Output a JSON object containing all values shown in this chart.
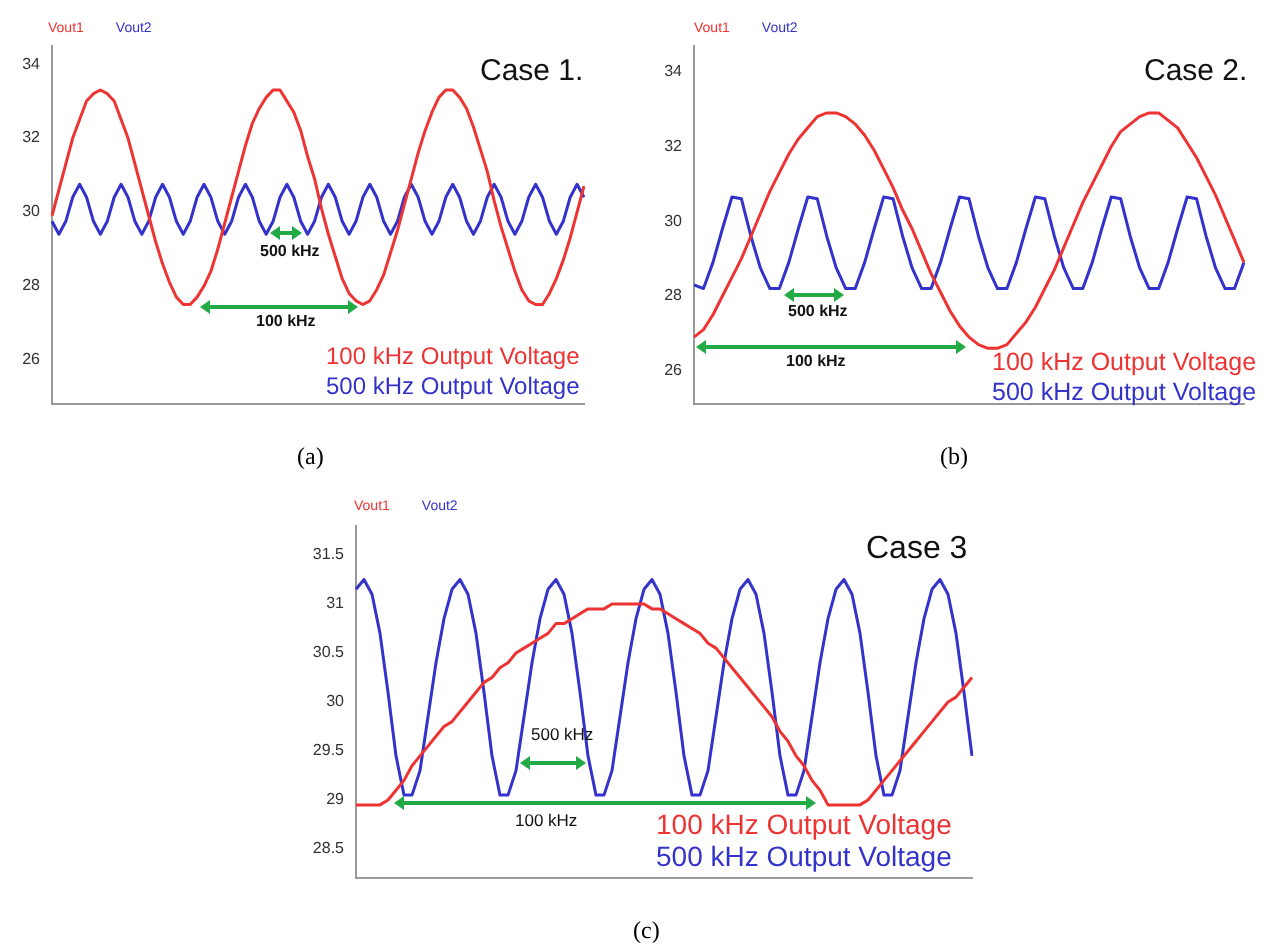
{
  "chart_data": [
    {
      "type": "line",
      "title": "(a)",
      "legend": "top left",
      "tick_labels": "y",
      "ylim": [
        24.8,
        34.5
      ],
      "yticks": [
        26,
        28,
        30,
        32,
        34
      ],
      "annotations": [
        "Case 1.",
        "500 kHz",
        "100 kHz",
        "100 kHz Output Voltage",
        "500 kHz Output Voltage"
      ],
      "categories": [
        null,
        null,
        null,
        null,
        null,
        null,
        null,
        null,
        null,
        null,
        null,
        null,
        null,
        null,
        null,
        null,
        null,
        null,
        null,
        null,
        null,
        null,
        null,
        null,
        null,
        null,
        null,
        null,
        null,
        null,
        null,
        null,
        null,
        null,
        null,
        null,
        null,
        null,
        null,
        null,
        null,
        null,
        null,
        null,
        null,
        null,
        null,
        null,
        null,
        null,
        null,
        null,
        null,
        null,
        null,
        null,
        null,
        null,
        null,
        null,
        null,
        null,
        null,
        null,
        null,
        null,
        null,
        null,
        null,
        null,
        null,
        null,
        null,
        null,
        null,
        null,
        null,
        null
      ],
      "series": [
        {
          "name": "Vout1",
          "color": "#ee3333",
          "values": [
            29.9,
            30.6,
            31.3,
            32.0,
            32.5,
            33.0,
            33.2,
            33.3,
            33.2,
            33.0,
            32.5,
            32.0,
            31.3,
            30.6,
            29.9,
            29.2,
            28.6,
            28.1,
            27.7,
            27.5,
            27.5,
            27.7,
            28.0,
            28.4,
            29.0,
            29.7,
            30.4,
            31.1,
            31.8,
            32.4,
            32.8,
            33.1,
            33.3,
            33.3,
            33.0,
            32.7,
            32.2,
            31.5,
            30.9,
            30.1,
            29.4,
            28.8,
            28.2,
            27.8,
            27.6,
            27.5,
            27.6,
            27.9,
            28.3,
            28.9,
            29.5,
            30.2,
            30.9,
            31.6,
            32.2,
            32.7,
            33.1,
            33.3,
            33.3,
            33.1,
            32.8,
            32.3,
            31.7,
            31.1,
            30.3,
            29.6,
            29.0,
            28.4,
            27.9,
            27.6,
            27.5,
            27.5,
            27.8,
            28.2,
            28.7,
            29.3,
            30.0,
            30.7
          ]
        },
        {
          "name": "Vout2",
          "color": "#3333cc",
          "values": [
            29.75,
            29.4,
            29.75,
            30.4,
            30.75,
            30.4,
            29.75,
            29.4,
            29.75,
            30.4,
            30.75,
            30.4,
            29.75,
            29.4,
            29.75,
            30.4,
            30.75,
            30.4,
            29.75,
            29.4,
            29.75,
            30.4,
            30.75,
            30.4,
            29.75,
            29.4,
            29.75,
            30.4,
            30.75,
            30.4,
            29.75,
            29.4,
            29.75,
            30.4,
            30.75,
            30.4,
            29.75,
            29.4,
            29.75,
            30.4,
            30.75,
            30.4,
            29.75,
            29.4,
            29.75,
            30.4,
            30.75,
            30.4,
            29.75,
            29.4,
            29.75,
            30.4,
            30.75,
            30.4,
            29.75,
            29.4,
            29.75,
            30.4,
            30.75,
            30.4,
            29.75,
            29.4,
            29.75,
            30.4,
            30.75,
            30.4,
            29.75,
            29.4,
            29.75,
            30.4,
            30.75,
            30.4,
            29.75,
            29.4,
            29.75,
            30.4,
            30.75,
            30.4
          ]
        }
      ]
    },
    {
      "type": "line",
      "title": "(b)",
      "legend": "top left",
      "tick_labels": "y",
      "ylim": [
        25.1,
        34.7
      ],
      "yticks": [
        26,
        28,
        30,
        32,
        34
      ],
      "annotations": [
        "Case 2.",
        "500 kHz",
        "100 kHz",
        "100 kHz Output Voltage",
        "500 kHz Output Voltage"
      ],
      "categories": [
        null,
        null,
        null,
        null,
        null,
        null,
        null,
        null,
        null,
        null,
        null,
        null,
        null,
        null,
        null,
        null,
        null,
        null,
        null,
        null,
        null,
        null,
        null,
        null,
        null,
        null,
        null,
        null,
        null,
        null,
        null,
        null,
        null,
        null,
        null,
        null,
        null,
        null,
        null,
        null,
        null,
        null,
        null,
        null,
        null,
        null,
        null,
        null,
        null,
        null,
        null,
        null,
        null,
        null,
        null,
        null,
        null,
        null,
        null
      ],
      "series": [
        {
          "name": "Vout1",
          "color": "#ee3333",
          "values": [
            26.9,
            27.1,
            27.5,
            28.0,
            28.5,
            29.0,
            29.6,
            30.2,
            30.8,
            31.3,
            31.8,
            32.2,
            32.5,
            32.8,
            32.9,
            32.9,
            32.8,
            32.6,
            32.3,
            31.9,
            31.4,
            30.9,
            30.3,
            29.8,
            29.2,
            28.6,
            28.1,
            27.6,
            27.2,
            26.9,
            26.7,
            26.6,
            26.6,
            26.7,
            27.0,
            27.3,
            27.7,
            28.2,
            28.7,
            29.3,
            29.9,
            30.5,
            31.0,
            31.5,
            32.0,
            32.4,
            32.6,
            32.8,
            32.9,
            32.9,
            32.7,
            32.5,
            32.1,
            31.7,
            31.2,
            30.7,
            30.1,
            29.5,
            28.9
          ]
        },
        {
          "name": "Vout2",
          "color": "#3333cc",
          "values": [
            28.3,
            28.2,
            28.9,
            29.8,
            30.65,
            30.6,
            29.6,
            28.75,
            28.2,
            28.2,
            28.9,
            29.8,
            30.65,
            30.6,
            29.6,
            28.75,
            28.2,
            28.2,
            28.9,
            29.8,
            30.65,
            30.6,
            29.6,
            28.75,
            28.2,
            28.2,
            28.9,
            29.8,
            30.65,
            30.6,
            29.6,
            28.75,
            28.2,
            28.2,
            28.9,
            29.8,
            30.65,
            30.6,
            29.6,
            28.75,
            28.2,
            28.2,
            28.9,
            29.8,
            30.65,
            30.6,
            29.6,
            28.75,
            28.2,
            28.2,
            28.9,
            29.8,
            30.65,
            30.6,
            29.6,
            28.75,
            28.2,
            28.2,
            28.9
          ]
        }
      ]
    },
    {
      "type": "line",
      "title": "(c)",
      "legend": "top left",
      "tick_labels": "y",
      "ylim": [
        28.2,
        31.8
      ],
      "yticks": [
        28.5,
        29,
        29.5,
        30,
        30.5,
        31,
        31.5
      ],
      "annotations": [
        "Case 3",
        "500 kHz",
        "100 kHz",
        "100 kHz Output Voltage",
        "500 kHz Output Voltage"
      ],
      "categories": [
        null,
        null,
        null,
        null,
        null,
        null,
        null,
        null,
        null,
        null,
        null,
        null,
        null,
        null,
        null,
        null,
        null,
        null,
        null,
        null,
        null,
        null,
        null,
        null,
        null,
        null,
        null,
        null,
        null,
        null,
        null,
        null,
        null,
        null,
        null,
        null,
        null,
        null,
        null,
        null,
        null,
        null,
        null,
        null,
        null,
        null,
        null,
        null,
        null,
        null,
        null,
        null,
        null,
        null,
        null,
        null,
        null,
        null,
        null,
        null,
        null,
        null,
        null,
        null,
        null,
        null,
        null,
        null,
        null,
        null,
        null,
        null,
        null,
        null,
        null,
        null,
        null,
        null
      ],
      "series": [
        {
          "name": "Vout1",
          "color": "#ee3333",
          "values": [
            28.95,
            28.95,
            28.95,
            28.95,
            29.0,
            29.1,
            29.2,
            29.35,
            29.45,
            29.55,
            29.65,
            29.75,
            29.8,
            29.9,
            30.0,
            30.1,
            30.2,
            30.25,
            30.35,
            30.4,
            30.5,
            30.55,
            30.6,
            30.65,
            30.7,
            30.8,
            30.8,
            30.85,
            30.9,
            30.95,
            30.95,
            30.95,
            31.0,
            31.0,
            31.0,
            31.0,
            31.0,
            30.95,
            30.95,
            30.9,
            30.85,
            30.8,
            30.75,
            30.7,
            30.6,
            30.55,
            30.45,
            30.35,
            30.25,
            30.15,
            30.05,
            29.95,
            29.85,
            29.7,
            29.6,
            29.45,
            29.35,
            29.2,
            29.1,
            28.95,
            28.95,
            28.95,
            28.95,
            28.95,
            29.0,
            29.1,
            29.2,
            29.3,
            29.4,
            29.5,
            29.6,
            29.7,
            29.8,
            29.9,
            30.0,
            30.05,
            30.15,
            30.25
          ]
        },
        {
          "name": "Vout2",
          "color": "#3333cc",
          "values": [
            31.15,
            31.25,
            31.1,
            30.7,
            30.1,
            29.45,
            29.05,
            29.05,
            29.3,
            29.85,
            30.4,
            30.85,
            31.15,
            31.25,
            31.1,
            30.7,
            30.1,
            29.45,
            29.05,
            29.05,
            29.3,
            29.85,
            30.4,
            30.85,
            31.15,
            31.25,
            31.1,
            30.7,
            30.1,
            29.45,
            29.05,
            29.05,
            29.3,
            29.85,
            30.4,
            30.85,
            31.15,
            31.25,
            31.1,
            30.7,
            30.1,
            29.45,
            29.05,
            29.05,
            29.3,
            29.85,
            30.4,
            30.85,
            31.15,
            31.25,
            31.1,
            30.7,
            30.1,
            29.45,
            29.05,
            29.05,
            29.3,
            29.85,
            30.4,
            30.85,
            31.15,
            31.25,
            31.1,
            30.7,
            30.1,
            29.45,
            29.05,
            29.05,
            29.3,
            29.85,
            30.4,
            30.85,
            31.15,
            31.25,
            31.1,
            30.7,
            30.1,
            29.45
          ]
        }
      ]
    }
  ]
}
